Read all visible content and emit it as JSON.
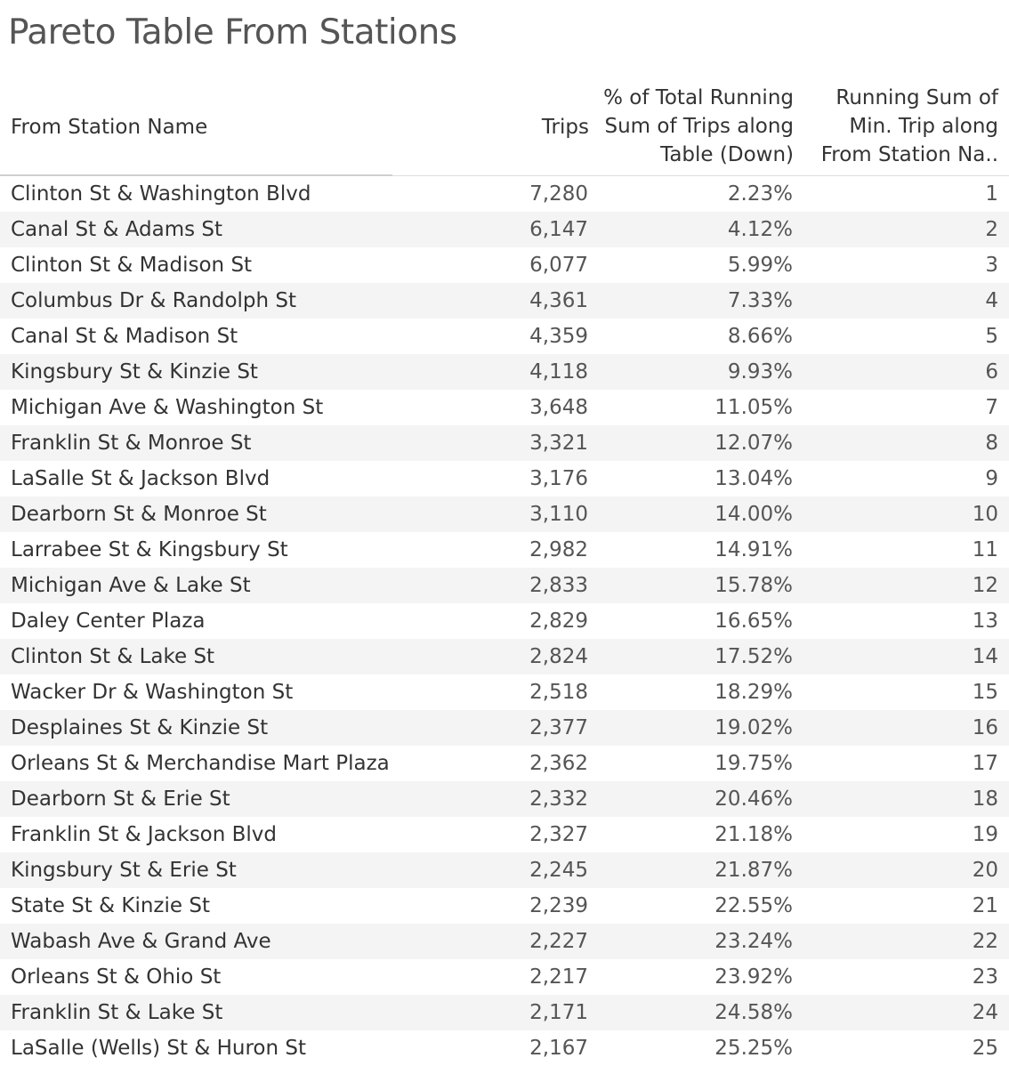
{
  "title": "Pareto Table From Stations",
  "chart_data": {
    "type": "table",
    "title": "Pareto Table From Stations",
    "columns": [
      "From Station Name",
      "Trips",
      "% of Total Running\nSum of Trips along\nTable (Down)",
      "Running Sum of\nMin. Trip along\nFrom Station Na.."
    ],
    "rows": [
      [
        "Clinton St & Washington Blvd",
        "7,280",
        "2.23%",
        "1"
      ],
      [
        "Canal St & Adams St",
        "6,147",
        "4.12%",
        "2"
      ],
      [
        "Clinton St & Madison St",
        "6,077",
        "5.99%",
        "3"
      ],
      [
        "Columbus Dr & Randolph St",
        "4,361",
        "7.33%",
        "4"
      ],
      [
        "Canal St & Madison St",
        "4,359",
        "8.66%",
        "5"
      ],
      [
        "Kingsbury St & Kinzie St",
        "4,118",
        "9.93%",
        "6"
      ],
      [
        "Michigan Ave & Washington St",
        "3,648",
        "11.05%",
        "7"
      ],
      [
        "Franklin St & Monroe St",
        "3,321",
        "12.07%",
        "8"
      ],
      [
        "LaSalle St & Jackson Blvd",
        "3,176",
        "13.04%",
        "9"
      ],
      [
        "Dearborn St & Monroe St",
        "3,110",
        "14.00%",
        "10"
      ],
      [
        "Larrabee St & Kingsbury St",
        "2,982",
        "14.91%",
        "11"
      ],
      [
        "Michigan Ave & Lake St",
        "2,833",
        "15.78%",
        "12"
      ],
      [
        "Daley Center Plaza",
        "2,829",
        "16.65%",
        "13"
      ],
      [
        "Clinton St & Lake St",
        "2,824",
        "17.52%",
        "14"
      ],
      [
        "Wacker Dr & Washington St",
        "2,518",
        "18.29%",
        "15"
      ],
      [
        "Desplaines St & Kinzie St",
        "2,377",
        "19.02%",
        "16"
      ],
      [
        "Orleans St & Merchandise Mart Plaza",
        "2,362",
        "19.75%",
        "17"
      ],
      [
        "Dearborn St & Erie St",
        "2,332",
        "20.46%",
        "18"
      ],
      [
        "Franklin St & Jackson Blvd",
        "2,327",
        "21.18%",
        "19"
      ],
      [
        "Kingsbury St & Erie St",
        "2,245",
        "21.87%",
        "20"
      ],
      [
        "State St & Kinzie St",
        "2,239",
        "22.55%",
        "21"
      ],
      [
        "Wabash Ave & Grand Ave",
        "2,227",
        "23.24%",
        "22"
      ],
      [
        "Orleans St & Ohio St",
        "2,217",
        "23.92%",
        "23"
      ],
      [
        "Franklin St & Lake St",
        "2,171",
        "24.58%",
        "24"
      ],
      [
        "LaSalle (Wells) St & Huron St",
        "2,167",
        "25.25%",
        "25"
      ]
    ]
  }
}
